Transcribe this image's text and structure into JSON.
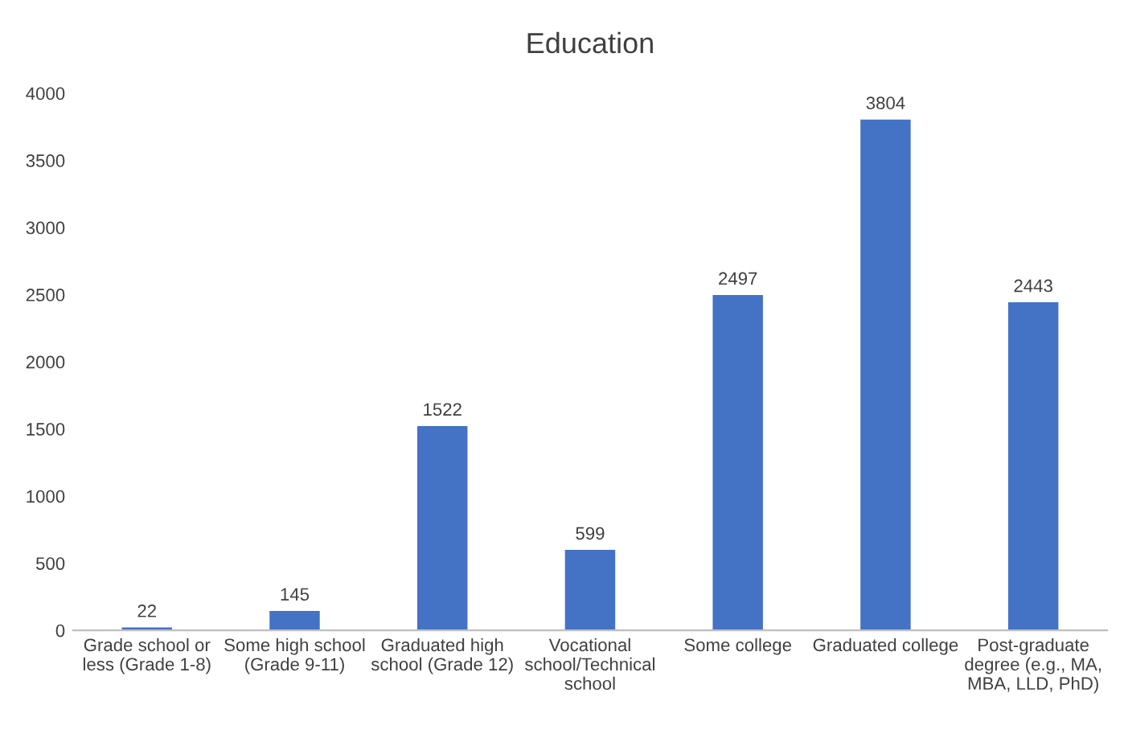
{
  "chart_data": {
    "type": "bar",
    "title": "Education",
    "categories": [
      "Grade school or less (Grade 1-8)",
      "Some high school (Grade 9-11)",
      "Graduated high school (Grade 12)",
      "Vocational school/Technical school",
      "Some college",
      "Graduated college",
      "Post-graduate degree (e.g., MA, MBA, LLD, PhD)"
    ],
    "values": [
      22,
      145,
      1522,
      599,
      2497,
      3804,
      2443
    ],
    "color": "#4472c4",
    "ylim": [
      0,
      4000
    ],
    "yticks": [
      0,
      500,
      1000,
      1500,
      2000,
      2500,
      3000,
      3500,
      4000
    ],
    "grid": false,
    "data_labels": true
  }
}
